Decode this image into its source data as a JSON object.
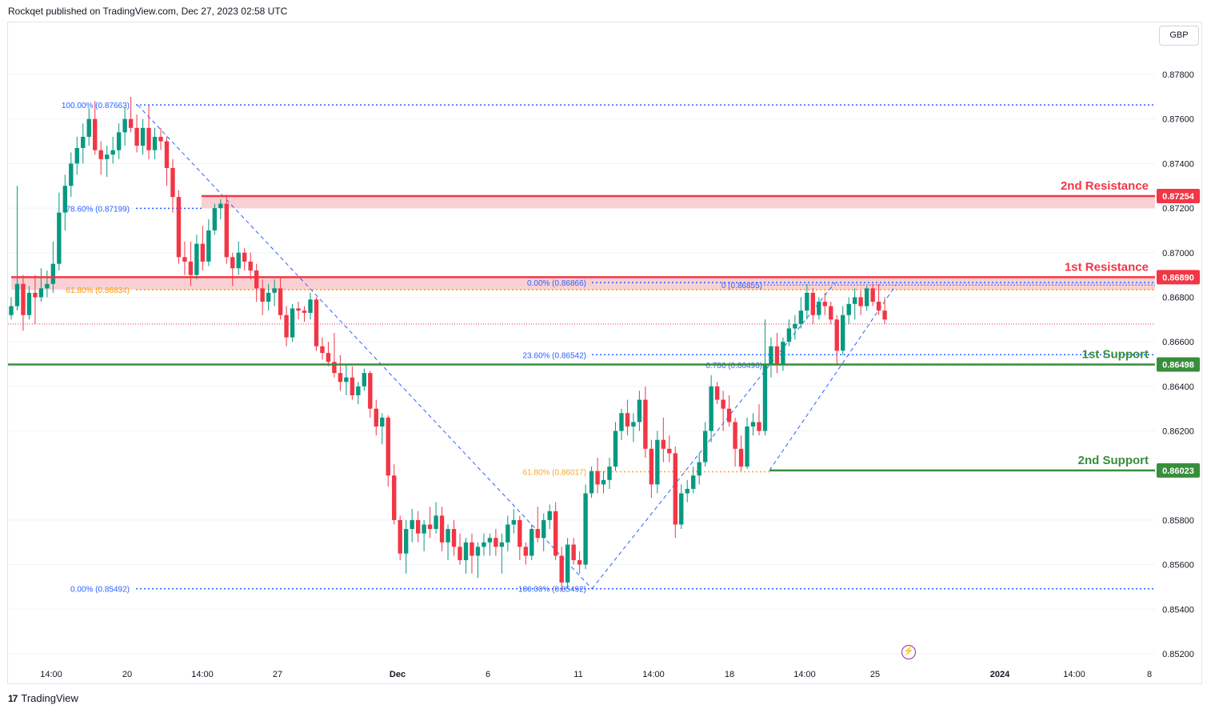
{
  "header": {
    "publish_line": "Rockqet published on TradingView.com, Dec 27, 2023 02:58 UTC"
  },
  "currency": "GBP",
  "footer": {
    "brand": "TradingView",
    "logo_mark": "17"
  },
  "colors": {
    "up": "#089981",
    "down": "#f23645",
    "fib_blue": "#2962ff",
    "fib_orange": "#ff9800",
    "resistance": "#f23645",
    "support": "#388e3c",
    "zone": "#f7c6c9"
  },
  "chart_data": {
    "type": "candlestick",
    "symbol_currency": "GBP",
    "ylim": [
      0.8515,
      0.88
    ],
    "y_ticks": [
      "0.87800",
      "0.87600",
      "0.87400",
      "0.87200",
      "0.87000",
      "0.86800",
      "0.86600",
      "0.86400",
      "0.86200",
      "0.85800",
      "0.85600",
      "0.85400",
      "0.85200"
    ],
    "x_ticks": [
      "14:00",
      "20",
      "14:00",
      "27",
      "Dec",
      "6",
      "11",
      "14:00",
      "18",
      "14:00",
      "25",
      "2024",
      "14:00",
      "8"
    ],
    "levels": [
      {
        "name": "2nd Resistance",
        "value": 0.87254,
        "label": "0.87254",
        "kind": "resistance"
      },
      {
        "name": "1st Resistance",
        "value": 0.8689,
        "label": "0.86890",
        "kind": "resistance"
      },
      {
        "name": "1st Support",
        "value": 0.86498,
        "label": "0.86498",
        "kind": "support"
      },
      {
        "name": "2nd Support",
        "value": 0.86023,
        "label": "0.86023",
        "kind": "support"
      }
    ],
    "fib_left": [
      {
        "label": "100.00% (0.87663)",
        "value": 0.87663
      },
      {
        "label": "78.60% (0.87199)",
        "value": 0.87199
      },
      {
        "label": "61.80% (0.86834)",
        "value": 0.86834
      },
      {
        "label": "0.00% (0.85492)",
        "value": 0.85492
      }
    ],
    "fib_right": [
      {
        "label": "0.00% (0.86866)",
        "value": 0.86866
      },
      {
        "label": "23.60% (0.86542)",
        "value": 0.86542
      },
      {
        "label": "61.80% (0.86017)",
        "value": 0.86017
      },
      {
        "label": "100.00% (0.85492)",
        "value": 0.85492
      }
    ],
    "fib_small": [
      {
        "label": "0 (0.86855)",
        "value": 0.86855
      },
      {
        "label": "0.786 (0.86496)",
        "value": 0.86496
      }
    ],
    "current_price": 0.8668,
    "candles": [
      [
        0.8672,
        0.868,
        0.867,
        0.8676
      ],
      [
        0.8676,
        0.873,
        0.8674,
        0.8686
      ],
      [
        0.8686,
        0.869,
        0.8665,
        0.8672
      ],
      [
        0.8672,
        0.8685,
        0.867,
        0.8682
      ],
      [
        0.8682,
        0.869,
        0.8668,
        0.868
      ],
      [
        0.868,
        0.8693,
        0.8678,
        0.8684
      ],
      [
        0.8684,
        0.8692,
        0.868,
        0.8686
      ],
      [
        0.8686,
        0.8705,
        0.8682,
        0.8695
      ],
      [
        0.8695,
        0.8727,
        0.8692,
        0.8718
      ],
      [
        0.8718,
        0.8735,
        0.871,
        0.873
      ],
      [
        0.873,
        0.8745,
        0.8725,
        0.874
      ],
      [
        0.874,
        0.8752,
        0.8735,
        0.8747
      ],
      [
        0.8747,
        0.8758,
        0.874,
        0.8752
      ],
      [
        0.8752,
        0.8765,
        0.8748,
        0.876
      ],
      [
        0.876,
        0.8768,
        0.8744,
        0.8746
      ],
      [
        0.8746,
        0.875,
        0.8735,
        0.8742
      ],
      [
        0.8742,
        0.8748,
        0.8734,
        0.8744
      ],
      [
        0.8744,
        0.8752,
        0.874,
        0.8746
      ],
      [
        0.8746,
        0.8758,
        0.8742,
        0.8754
      ],
      [
        0.8754,
        0.8765,
        0.8748,
        0.876
      ],
      [
        0.876,
        0.877,
        0.8754,
        0.8756
      ],
      [
        0.8756,
        0.8762,
        0.8745,
        0.8748
      ],
      [
        0.8748,
        0.876,
        0.8744,
        0.8756
      ],
      [
        0.8756,
        0.8766,
        0.8742,
        0.8746
      ],
      [
        0.8746,
        0.8756,
        0.8742,
        0.8752
      ],
      [
        0.8752,
        0.8756,
        0.8746,
        0.875
      ],
      [
        0.875,
        0.8752,
        0.873,
        0.8738
      ],
      [
        0.8738,
        0.8742,
        0.8718,
        0.8725
      ],
      [
        0.8725,
        0.8728,
        0.8695,
        0.8698
      ],
      [
        0.8698,
        0.8705,
        0.869,
        0.8696
      ],
      [
        0.8696,
        0.8705,
        0.8685,
        0.869
      ],
      [
        0.869,
        0.8708,
        0.8688,
        0.8704
      ],
      [
        0.8704,
        0.8712,
        0.8692,
        0.8696
      ],
      [
        0.8696,
        0.8715,
        0.8694,
        0.871
      ],
      [
        0.871,
        0.8722,
        0.8708,
        0.872
      ],
      [
        0.872,
        0.8724,
        0.8715,
        0.8722
      ],
      [
        0.8722,
        0.8726,
        0.8695,
        0.8698
      ],
      [
        0.8698,
        0.87,
        0.8685,
        0.8693
      ],
      [
        0.8693,
        0.8705,
        0.869,
        0.87
      ],
      [
        0.87,
        0.8702,
        0.8692,
        0.8696
      ],
      [
        0.8696,
        0.87,
        0.8688,
        0.8692
      ],
      [
        0.8692,
        0.8695,
        0.8678,
        0.8684
      ],
      [
        0.8684,
        0.8688,
        0.8672,
        0.8678
      ],
      [
        0.8678,
        0.8686,
        0.8674,
        0.8682
      ],
      [
        0.8682,
        0.8688,
        0.8676,
        0.8684
      ],
      [
        0.8684,
        0.8689,
        0.867,
        0.8672
      ],
      [
        0.8672,
        0.8676,
        0.8658,
        0.8662
      ],
      [
        0.8662,
        0.8677,
        0.866,
        0.8675
      ],
      [
        0.8675,
        0.8678,
        0.867,
        0.8674
      ],
      [
        0.8674,
        0.8676,
        0.8669,
        0.8673
      ],
      [
        0.8673,
        0.8682,
        0.867,
        0.8679
      ],
      [
        0.8679,
        0.868,
        0.8656,
        0.8658
      ],
      [
        0.8658,
        0.8662,
        0.8652,
        0.8655
      ],
      [
        0.8655,
        0.866,
        0.8649,
        0.8651
      ],
      [
        0.8651,
        0.8664,
        0.8644,
        0.8646
      ],
      [
        0.8646,
        0.8654,
        0.8638,
        0.8642
      ],
      [
        0.8642,
        0.865,
        0.8636,
        0.8644
      ],
      [
        0.8644,
        0.8649,
        0.8634,
        0.8636
      ],
      [
        0.8636,
        0.8642,
        0.8632,
        0.864
      ],
      [
        0.864,
        0.8648,
        0.8638,
        0.8646
      ],
      [
        0.8646,
        0.8647,
        0.8626,
        0.863
      ],
      [
        0.863,
        0.8634,
        0.8618,
        0.8622
      ],
      [
        0.8622,
        0.8628,
        0.8614,
        0.8626
      ],
      [
        0.8626,
        0.8627,
        0.8595,
        0.86
      ],
      [
        0.86,
        0.8605,
        0.8578,
        0.858
      ],
      [
        0.858,
        0.8582,
        0.8562,
        0.8565
      ],
      [
        0.8565,
        0.858,
        0.8556,
        0.8576
      ],
      [
        0.8576,
        0.8585,
        0.857,
        0.858
      ],
      [
        0.858,
        0.8584,
        0.857,
        0.8574
      ],
      [
        0.8574,
        0.858,
        0.8566,
        0.8578
      ],
      [
        0.8578,
        0.8586,
        0.8572,
        0.8576
      ],
      [
        0.8576,
        0.8588,
        0.8574,
        0.8582
      ],
      [
        0.8582,
        0.8586,
        0.8566,
        0.857
      ],
      [
        0.857,
        0.8578,
        0.8562,
        0.8576
      ],
      [
        0.8576,
        0.858,
        0.8564,
        0.8568
      ],
      [
        0.8568,
        0.8574,
        0.856,
        0.8562
      ],
      [
        0.8562,
        0.8572,
        0.8556,
        0.857
      ],
      [
        0.857,
        0.8574,
        0.8556,
        0.8564
      ],
      [
        0.8564,
        0.857,
        0.8554,
        0.8568
      ],
      [
        0.8568,
        0.8574,
        0.8564,
        0.857
      ],
      [
        0.857,
        0.8574,
        0.8564,
        0.8572
      ],
      [
        0.8572,
        0.8576,
        0.8564,
        0.8568
      ],
      [
        0.8568,
        0.8574,
        0.8556,
        0.857
      ],
      [
        0.857,
        0.8582,
        0.8566,
        0.8578
      ],
      [
        0.8578,
        0.8585,
        0.8574,
        0.858
      ],
      [
        0.858,
        0.8582,
        0.8562,
        0.8568
      ],
      [
        0.8568,
        0.857,
        0.856,
        0.8564
      ],
      [
        0.8564,
        0.8578,
        0.8562,
        0.8576
      ],
      [
        0.8576,
        0.8586,
        0.857,
        0.8572
      ],
      [
        0.8572,
        0.8583,
        0.8566,
        0.858
      ],
      [
        0.858,
        0.8587,
        0.8576,
        0.8584
      ],
      [
        0.8584,
        0.8588,
        0.8562,
        0.8564
      ],
      [
        0.8564,
        0.8568,
        0.8548,
        0.8552
      ],
      [
        0.8552,
        0.8572,
        0.85492,
        0.8569
      ],
      [
        0.8569,
        0.8572,
        0.856,
        0.8562
      ],
      [
        0.8562,
        0.8566,
        0.8556,
        0.856
      ],
      [
        0.856,
        0.8596,
        0.8558,
        0.8592
      ],
      [
        0.8592,
        0.8604,
        0.859,
        0.8602
      ],
      [
        0.8602,
        0.8608,
        0.8592,
        0.8596
      ],
      [
        0.8596,
        0.8602,
        0.8592,
        0.8598
      ],
      [
        0.8598,
        0.8608,
        0.8594,
        0.8604
      ],
      [
        0.8604,
        0.8624,
        0.8602,
        0.862
      ],
      [
        0.862,
        0.863,
        0.8616,
        0.8628
      ],
      [
        0.8628,
        0.8634,
        0.8618,
        0.8622
      ],
      [
        0.8622,
        0.8628,
        0.8615,
        0.8624
      ],
      [
        0.8624,
        0.8638,
        0.862,
        0.8634
      ],
      [
        0.8634,
        0.864,
        0.8608,
        0.8612
      ],
      [
        0.8612,
        0.8616,
        0.859,
        0.8596
      ],
      [
        0.8596,
        0.862,
        0.8592,
        0.8616
      ],
      [
        0.8616,
        0.8626,
        0.8606,
        0.8612
      ],
      [
        0.8612,
        0.8618,
        0.8606,
        0.861
      ],
      [
        0.861,
        0.8613,
        0.8572,
        0.8578
      ],
      [
        0.8578,
        0.8596,
        0.8576,
        0.8592
      ],
      [
        0.8592,
        0.8598,
        0.8588,
        0.8594
      ],
      [
        0.8594,
        0.8604,
        0.8592,
        0.86
      ],
      [
        0.86,
        0.861,
        0.8596,
        0.8606
      ],
      [
        0.8606,
        0.8624,
        0.8604,
        0.862
      ],
      [
        0.862,
        0.8645,
        0.8615,
        0.864
      ],
      [
        0.864,
        0.8642,
        0.8632,
        0.8634
      ],
      [
        0.8634,
        0.8638,
        0.862,
        0.863
      ],
      [
        0.863,
        0.8636,
        0.8622,
        0.8624
      ],
      [
        0.8624,
        0.8626,
        0.8604,
        0.8612
      ],
      [
        0.8612,
        0.8618,
        0.8602,
        0.8604
      ],
      [
        0.8604,
        0.8626,
        0.8603,
        0.8622
      ],
      [
        0.8622,
        0.8628,
        0.8618,
        0.8624
      ],
      [
        0.8624,
        0.8632,
        0.8618,
        0.862
      ],
      [
        0.862,
        0.867,
        0.8618,
        0.865
      ],
      [
        0.865,
        0.8662,
        0.8644,
        0.8658
      ],
      [
        0.8658,
        0.8664,
        0.8646,
        0.865
      ],
      [
        0.865,
        0.8662,
        0.8647,
        0.866
      ],
      [
        0.866,
        0.867,
        0.8658,
        0.8666
      ],
      [
        0.8666,
        0.8672,
        0.8661,
        0.8668
      ],
      [
        0.8668,
        0.868,
        0.8666,
        0.8674
      ],
      [
        0.8674,
        0.8686,
        0.867,
        0.8682
      ],
      [
        0.8682,
        0.8684,
        0.8668,
        0.8672
      ],
      [
        0.8672,
        0.868,
        0.867,
        0.8678
      ],
      [
        0.8678,
        0.8682,
        0.8672,
        0.8676
      ],
      [
        0.8676,
        0.8678,
        0.8668,
        0.867
      ],
      [
        0.867,
        0.8672,
        0.865,
        0.8656
      ],
      [
        0.8656,
        0.8676,
        0.8654,
        0.8672
      ],
      [
        0.8672,
        0.868,
        0.8668,
        0.8677
      ],
      [
        0.8677,
        0.8684,
        0.867,
        0.868
      ],
      [
        0.868,
        0.8683,
        0.8672,
        0.8676
      ],
      [
        0.8676,
        0.8685,
        0.8674,
        0.8684
      ],
      [
        0.8684,
        0.8686,
        0.8676,
        0.8678
      ],
      [
        0.8678,
        0.8686,
        0.8672,
        0.8674
      ],
      [
        0.8674,
        0.868,
        0.8668,
        0.867
      ]
    ]
  }
}
